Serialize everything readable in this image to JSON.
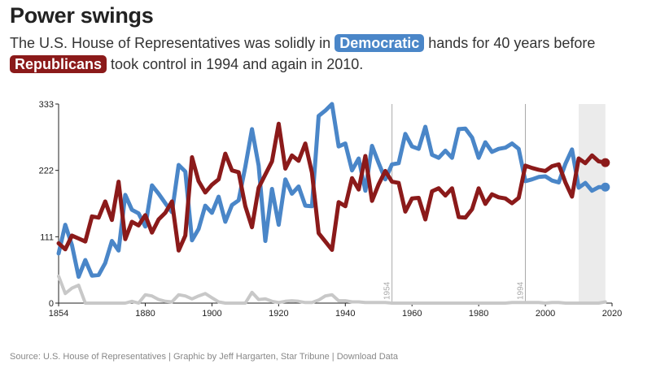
{
  "title": "Power swings",
  "subtitle": {
    "part1": "The U.S. House of Representatives was solidly in",
    "dem_label": "Democratic",
    "part2": "hands for 40 years before",
    "rep_label": "Republicans",
    "part3": "took control in 1994 and again in 2010."
  },
  "footer": {
    "source": "Source: U.S. House of Representatives",
    "sep1": " | ",
    "credit": "Graphic by Jeff Hargarten, Star Tribune",
    "sep2": " | ",
    "download": "Download Data"
  },
  "colors": {
    "democrat": "#4a86c8",
    "republican": "#8b1a1a",
    "other": "#c8c8c8",
    "highlight": "#ebebeb",
    "annotation": "#aaaaaa"
  },
  "chart_data": {
    "type": "line",
    "xlim": [
      1854,
      2020
    ],
    "ylim": [
      0,
      333
    ],
    "xticks": [
      "1854",
      "1880",
      "1900",
      "1920",
      "1940",
      "1960",
      "1980",
      "2000",
      "2020"
    ],
    "yticks": [
      "0",
      "111",
      "222",
      "333"
    ],
    "annotations": [
      {
        "x": 1954,
        "label": "1954"
      },
      {
        "x": 1994,
        "label": "1994"
      }
    ],
    "highlight_range": [
      2010,
      2018
    ],
    "x": [
      1854,
      1856,
      1858,
      1860,
      1862,
      1864,
      1866,
      1868,
      1870,
      1872,
      1874,
      1876,
      1878,
      1880,
      1882,
      1884,
      1886,
      1888,
      1890,
      1892,
      1894,
      1896,
      1898,
      1900,
      1902,
      1904,
      1906,
      1908,
      1910,
      1912,
      1914,
      1916,
      1918,
      1920,
      1922,
      1924,
      1926,
      1928,
      1930,
      1932,
      1934,
      1936,
      1938,
      1940,
      1942,
      1944,
      1946,
      1948,
      1950,
      1952,
      1954,
      1956,
      1958,
      1960,
      1962,
      1964,
      1966,
      1968,
      1970,
      1972,
      1974,
      1976,
      1978,
      1980,
      1982,
      1984,
      1986,
      1988,
      1990,
      1992,
      1994,
      1996,
      1998,
      2000,
      2002,
      2004,
      2006,
      2008,
      2010,
      2012,
      2014,
      2016,
      2018
    ],
    "series": [
      {
        "key": "democrat",
        "values": [
          83,
          131,
          97,
          44,
          72,
          46,
          47,
          67,
          104,
          88,
          181,
          156,
          150,
          128,
          197,
          183,
          167,
          152,
          231,
          220,
          105,
          124,
          163,
          151,
          178,
          136,
          164,
          172,
          228,
          291,
          230,
          104,
          191,
          131,
          207,
          183,
          195,
          163,
          162,
          313,
          322,
          333,
          262,
          267,
          222,
          242,
          188,
          263,
          234,
          207,
          232,
          234,
          283,
          262,
          258,
          295,
          248,
          243,
          255,
          243,
          291,
          292,
          277,
          243,
          269,
          253,
          258,
          260,
          267,
          258,
          204,
          207,
          211,
          212,
          205,
          202,
          233,
          257,
          193,
          201,
          188,
          194,
          194
        ]
      },
      {
        "key": "republican",
        "values": [
          100,
          90,
          113,
          108,
          103,
          145,
          143,
          170,
          139,
          203,
          107,
          136,
          130,
          147,
          118,
          140,
          151,
          170,
          88,
          113,
          244,
          204,
          185,
          198,
          207,
          250,
          222,
          219,
          162,
          127,
          193,
          215,
          237,
          300,
          225,
          247,
          238,
          267,
          218,
          117,
          103,
          89,
          169,
          162,
          209,
          190,
          246,
          171,
          199,
          221,
          203,
          201,
          153,
          175,
          176,
          140,
          187,
          192,
          180,
          192,
          144,
          143,
          157,
          192,
          166,
          182,
          177,
          175,
          167,
          176,
          230,
          226,
          223,
          221,
          229,
          232,
          202,
          178,
          242,
          234,
          247,
          237,
          235
        ]
      },
      {
        "key": "other",
        "values": [
          45,
          16,
          25,
          30,
          0,
          0,
          0,
          0,
          0,
          0,
          0,
          3,
          0,
          14,
          12,
          6,
          3,
          2,
          14,
          12,
          7,
          12,
          16,
          9,
          2,
          0,
          0,
          0,
          0,
          18,
          6,
          7,
          3,
          1,
          3,
          4,
          3,
          1,
          1,
          5,
          12,
          14,
          4,
          4,
          2,
          2,
          1,
          1,
          1,
          1,
          0,
          0,
          0,
          0,
          0,
          0,
          0,
          0,
          0,
          0,
          0,
          0,
          0,
          0,
          0,
          0,
          0,
          0,
          1,
          1,
          1,
          1,
          1,
          0,
          1,
          1,
          0,
          0,
          0,
          0,
          0,
          0,
          2
        ]
      }
    ]
  }
}
